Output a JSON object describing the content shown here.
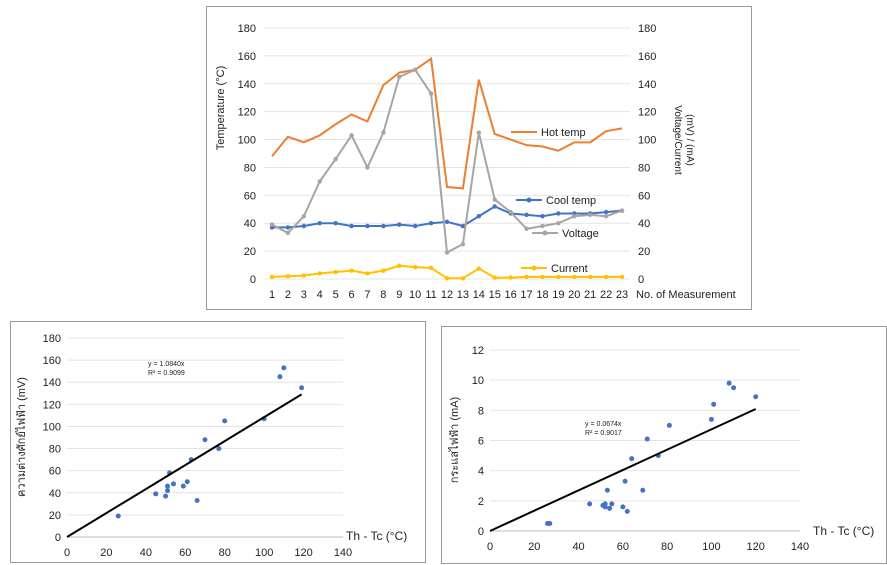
{
  "chart_data": [
    {
      "type": "line",
      "ylabel_left": "Temperature (°C)",
      "ylabel_right": "Voltage/Current (mV) / (mA)",
      "xlabel": "No. of Measurement",
      "categories": [
        "1",
        "2",
        "3",
        "4",
        "5",
        "6",
        "7",
        "8",
        "9",
        "10",
        "11",
        "12",
        "13",
        "14",
        "15",
        "16",
        "17",
        "18",
        "19",
        "20",
        "21",
        "22",
        "23"
      ],
      "ylim_left": [
        0,
        180
      ],
      "ylim_right": [
        0,
        180
      ],
      "y_ticks": [
        "0",
        "20",
        "40",
        "60",
        "80",
        "100",
        "120",
        "140",
        "160",
        "180"
      ],
      "series": [
        {
          "name": "Hot temp",
          "color": "#ed7d31",
          "axis": "left",
          "values": [
            88,
            102,
            98,
            103,
            111,
            118,
            113,
            139,
            148,
            150,
            158,
            66,
            65,
            143,
            104,
            100,
            96,
            95,
            92,
            98,
            98,
            106,
            108
          ]
        },
        {
          "name": "Cool temp",
          "color": "#4472c4",
          "axis": "left",
          "values": [
            37,
            37,
            38,
            40,
            40,
            38,
            38,
            38,
            39,
            38,
            40,
            41,
            38,
            45,
            52,
            47,
            46,
            45,
            47,
            47,
            47,
            48,
            49
          ]
        },
        {
          "name": "Voltage",
          "color": "#a5a5a5",
          "axis": "right",
          "values": [
            39,
            33,
            45,
            70,
            86,
            103,
            80,
            105,
            145,
            150,
            133,
            19,
            25,
            105,
            57,
            48,
            36,
            38,
            40,
            45,
            46,
            45,
            49
          ]
        },
        {
          "name": "Current",
          "color": "#ffc000",
          "axis": "right",
          "values": [
            1.5,
            2,
            2.5,
            4,
            5,
            6,
            4,
            6,
            9.5,
            8.5,
            8,
            0.5,
            0.5,
            7.5,
            1,
            1,
            1.5,
            1.5,
            1.5,
            1.5,
            1.5,
            1.5,
            1.5
          ]
        }
      ]
    },
    {
      "type": "scatter",
      "ylabel": "ความต่างศักย์ไฟฟ้า (mV)",
      "xlabel": "Th - Tc (°C)",
      "xlim": [
        0,
        140
      ],
      "ylim": [
        0,
        180
      ],
      "x_ticks": [
        "0",
        "20",
        "40",
        "60",
        "80",
        "100",
        "120",
        "140"
      ],
      "y_ticks": [
        "0",
        "20",
        "40",
        "60",
        "80",
        "100",
        "120",
        "140",
        "160",
        "180"
      ],
      "equation": "y = 1.0840x",
      "r2": "R² = 0.9099",
      "trendline": {
        "slope": 1.084,
        "x_range": [
          0,
          119
        ]
      },
      "points": [
        [
          26,
          19
        ],
        [
          45,
          39
        ],
        [
          50,
          37
        ],
        [
          51,
          42
        ],
        [
          51,
          46
        ],
        [
          52,
          58
        ],
        [
          54,
          48
        ],
        [
          59,
          46
        ],
        [
          61,
          50
        ],
        [
          63,
          70
        ],
        [
          66,
          33
        ],
        [
          70,
          88
        ],
        [
          77,
          80
        ],
        [
          80,
          105
        ],
        [
          100,
          107
        ],
        [
          108,
          145
        ],
        [
          110,
          153
        ],
        [
          119,
          135
        ]
      ]
    },
    {
      "type": "scatter",
      "ylabel": "กระแสไฟฟ้า (mA)",
      "xlabel": "Th - Tc (°C)",
      "xlim": [
        0,
        140
      ],
      "ylim": [
        0,
        12
      ],
      "x_ticks": [
        "0",
        "20",
        "40",
        "60",
        "80",
        "100",
        "120",
        "140"
      ],
      "y_ticks": [
        "0",
        "2",
        "4",
        "6",
        "8",
        "10",
        "12"
      ],
      "equation": "y = 0.0674x",
      "r2": "R² = 0.9017",
      "trendline": {
        "slope": 0.0674,
        "x_range": [
          0,
          120
        ]
      },
      "points": [
        [
          26,
          0.5
        ],
        [
          27,
          0.5
        ],
        [
          45,
          1.8
        ],
        [
          51,
          1.7
        ],
        [
          52,
          1.6
        ],
        [
          52,
          1.8
        ],
        [
          53,
          2.7
        ],
        [
          54,
          1.5
        ],
        [
          55,
          1.8
        ],
        [
          60,
          1.6
        ],
        [
          61,
          3.3
        ],
        [
          62,
          1.3
        ],
        [
          64,
          4.8
        ],
        [
          69,
          2.7
        ],
        [
          71,
          6.1
        ],
        [
          76,
          5.0
        ],
        [
          81,
          7.0
        ],
        [
          100,
          7.4
        ],
        [
          101,
          8.4
        ],
        [
          108,
          9.8
        ],
        [
          110,
          9.5
        ],
        [
          120,
          8.9
        ]
      ]
    }
  ]
}
